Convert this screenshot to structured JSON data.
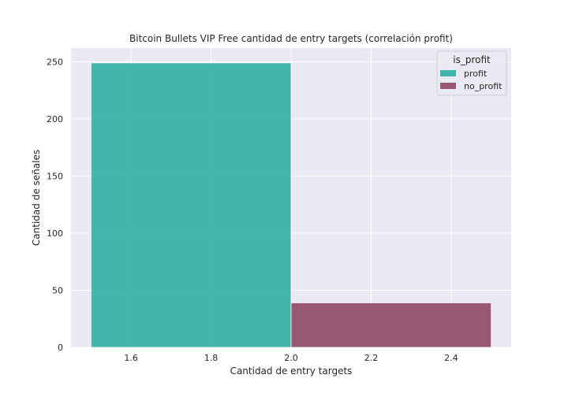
{
  "chart_data": {
    "type": "bar",
    "title": "Bitcoin Bullets VIP Free cantidad de entry targets (correlación profit)",
    "xlabel": "Cantidad de entry targets",
    "ylabel": "Cantidad de señales",
    "xlim": [
      1.45,
      2.55
    ],
    "ylim": [
      0,
      262
    ],
    "xticks": [
      1.6,
      1.8,
      2.0,
      2.2,
      2.4
    ],
    "xtick_labels": [
      "1.6",
      "1.8",
      "2.0",
      "2.2",
      "2.4"
    ],
    "yticks": [
      0,
      50,
      100,
      150,
      200,
      250
    ],
    "ytick_labels": [
      "0",
      "50",
      "100",
      "150",
      "200",
      "250"
    ],
    "grid": true,
    "legend": {
      "title": "is_profit",
      "placement": "top-right",
      "entries": [
        "profit",
        "no_profit"
      ]
    },
    "bars": [
      {
        "series": "profit",
        "x_start": 1.5,
        "x_end": 2.0,
        "value": 249,
        "color": "#26ab9c"
      },
      {
        "series": "no_profit",
        "x_start": 2.0,
        "x_end": 2.5,
        "value": 39,
        "color": "#8b3e5c"
      }
    ],
    "colors": {
      "background": "#eaeaf2",
      "grid": "#ffffff",
      "profit": "#26ab9c",
      "no_profit": "#8b3e5c"
    }
  }
}
